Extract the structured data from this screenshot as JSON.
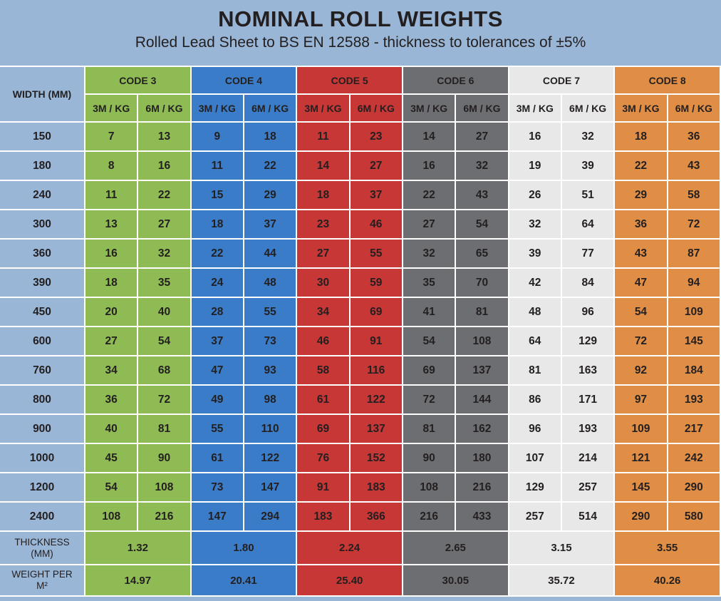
{
  "title": "NOMINAL ROLL WEIGHTS",
  "subtitle": "Rolled Lead Sheet to BS EN 12588 - thickness to tolerances of ±5%",
  "table": {
    "width_header": "WIDTH (MM)",
    "sub_headers": [
      "3M / KG",
      "6M / KG"
    ],
    "codes": [
      {
        "label": "CODE 3",
        "color": "#8fbb55",
        "text_color": "#231f20"
      },
      {
        "label": "CODE 4",
        "color": "#3a7cc8",
        "text_color": "#231f20"
      },
      {
        "label": "CODE 5",
        "color": "#c63735",
        "text_color": "#231f20"
      },
      {
        "label": "CODE 6",
        "color": "#6d6e72",
        "text_color": "#231f20"
      },
      {
        "label": "CODE 7",
        "color": "#e8e8e8",
        "text_color": "#231f20"
      },
      {
        "label": "CODE 8",
        "color": "#e08e45",
        "text_color": "#231f20"
      }
    ],
    "rows": [
      {
        "width": "150",
        "values": [
          "7",
          "13",
          "9",
          "18",
          "11",
          "23",
          "14",
          "27",
          "16",
          "32",
          "18",
          "36"
        ]
      },
      {
        "width": "180",
        "values": [
          "8",
          "16",
          "11",
          "22",
          "14",
          "27",
          "16",
          "32",
          "19",
          "39",
          "22",
          "43"
        ]
      },
      {
        "width": "240",
        "values": [
          "11",
          "22",
          "15",
          "29",
          "18",
          "37",
          "22",
          "43",
          "26",
          "51",
          "29",
          "58"
        ]
      },
      {
        "width": "300",
        "values": [
          "13",
          "27",
          "18",
          "37",
          "23",
          "46",
          "27",
          "54",
          "32",
          "64",
          "36",
          "72"
        ]
      },
      {
        "width": "360",
        "values": [
          "16",
          "32",
          "22",
          "44",
          "27",
          "55",
          "32",
          "65",
          "39",
          "77",
          "43",
          "87"
        ]
      },
      {
        "width": "390",
        "values": [
          "18",
          "35",
          "24",
          "48",
          "30",
          "59",
          "35",
          "70",
          "42",
          "84",
          "47",
          "94"
        ]
      },
      {
        "width": "450",
        "values": [
          "20",
          "40",
          "28",
          "55",
          "34",
          "69",
          "41",
          "81",
          "48",
          "96",
          "54",
          "109"
        ]
      },
      {
        "width": "600",
        "values": [
          "27",
          "54",
          "37",
          "73",
          "46",
          "91",
          "54",
          "108",
          "64",
          "129",
          "72",
          "145"
        ]
      },
      {
        "width": "760",
        "values": [
          "34",
          "68",
          "47",
          "93",
          "58",
          "116",
          "69",
          "137",
          "81",
          "163",
          "92",
          "184"
        ]
      },
      {
        "width": "800",
        "values": [
          "36",
          "72",
          "49",
          "98",
          "61",
          "122",
          "72",
          "144",
          "86",
          "171",
          "97",
          "193"
        ]
      },
      {
        "width": "900",
        "values": [
          "40",
          "81",
          "55",
          "110",
          "69",
          "137",
          "81",
          "162",
          "96",
          "193",
          "109",
          "217"
        ]
      },
      {
        "width": "1000",
        "values": [
          "45",
          "90",
          "61",
          "122",
          "76",
          "152",
          "90",
          "180",
          "107",
          "214",
          "121",
          "242"
        ]
      },
      {
        "width": "1200",
        "values": [
          "54",
          "108",
          "73",
          "147",
          "91",
          "183",
          "108",
          "216",
          "129",
          "257",
          "145",
          "290"
        ]
      },
      {
        "width": "2400",
        "values": [
          "108",
          "216",
          "147",
          "294",
          "183",
          "366",
          "216",
          "433",
          "257",
          "514",
          "290",
          "580"
        ]
      }
    ],
    "thickness": {
      "label_line1": "THICKNESS",
      "label_line2": "(MM)",
      "values": [
        "1.32",
        "1.80",
        "2.24",
        "2.65",
        "3.15",
        "3.55"
      ]
    },
    "weight_per_m2": {
      "label_line1": "WEIGHT PER",
      "label_line2": "M²",
      "values": [
        "14.97",
        "20.41",
        "25.40",
        "30.05",
        "35.72",
        "40.26"
      ]
    }
  }
}
